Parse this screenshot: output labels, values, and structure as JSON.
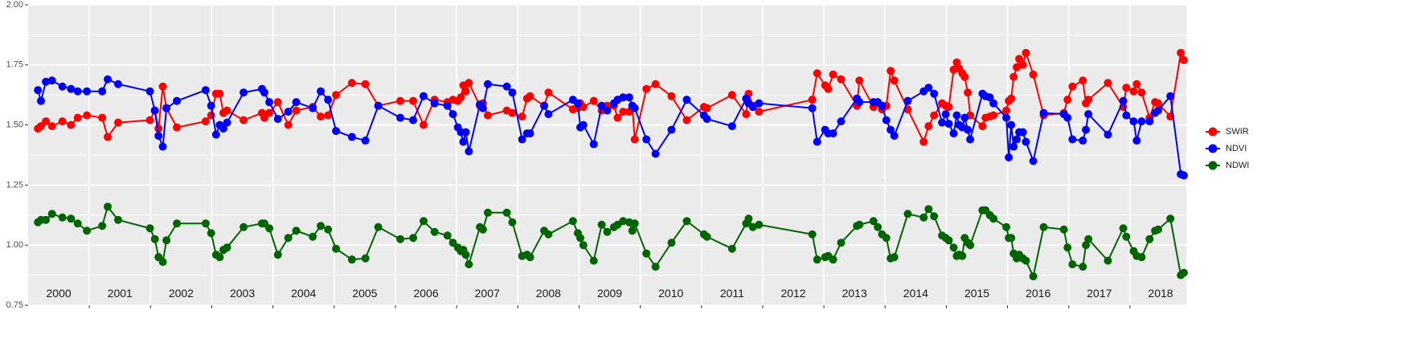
{
  "chart_data": {
    "type": "line",
    "x": [
      2000.16,
      2000.21,
      2000.29,
      2000.39,
      2000.56,
      2000.7,
      2000.81,
      2000.96,
      2001.21,
      2001.3,
      2001.47,
      2001.99,
      2002.07,
      2002.13,
      2002.2,
      2002.26,
      2002.43,
      2002.9,
      2002.99,
      2003.07,
      2003.13,
      2003.19,
      2003.25,
      2003.52,
      2003.82,
      2003.86,
      2003.94,
      2004.08,
      2004.25,
      2004.38,
      2004.65,
      2004.78,
      2004.9,
      2005.03,
      2005.29,
      2005.51,
      2005.72,
      2006.08,
      2006.29,
      2006.46,
      2006.64,
      2006.85,
      2006.94,
      2007.02,
      2007.07,
      2007.11,
      2007.15,
      2007.2,
      2007.38,
      2007.43,
      2007.51,
      2007.82,
      2007.91,
      2008.07,
      2008.15,
      2008.2,
      2008.43,
      2008.5,
      2008.9,
      2008.98,
      2009.02,
      2009.07,
      2009.24,
      2009.37,
      2009.46,
      2009.57,
      2009.63,
      2009.72,
      2009.82,
      2009.87,
      2009.91,
      2010.1,
      2010.25,
      2010.51,
      2010.76,
      2011.04,
      2011.09,
      2011.5,
      2011.73,
      2011.77,
      2011.84,
      2011.94,
      2012.81,
      2012.89,
      2013.02,
      2013.07,
      2013.15,
      2013.28,
      2013.54,
      2013.58,
      2013.81,
      2013.88,
      2013.95,
      2014.02,
      2014.09,
      2014.15,
      2014.37,
      2014.63,
      2014.71,
      2014.8,
      2014.93,
      2014.99,
      2015.04,
      2015.12,
      2015.17,
      2015.21,
      2015.26,
      2015.3,
      2015.35,
      2015.39,
      2015.59,
      2015.64,
      2015.71,
      2015.77,
      2015.98,
      2016.02,
      2016.06,
      2016.1,
      2016.15,
      2016.19,
      2016.25,
      2016.3,
      2016.42,
      2016.59,
      2016.92,
      2016.98,
      2017.06,
      2017.23,
      2017.28,
      2017.32,
      2017.64,
      2017.89,
      2017.94,
      2018.06,
      2018.11,
      2018.19,
      2018.32,
      2018.41,
      2018.46,
      2018.66,
      2018.83,
      2018.88
    ],
    "series": [
      {
        "name": "SWIR",
        "color": "#ff0000",
        "values": [
          1.485,
          1.495,
          1.515,
          1.495,
          1.515,
          1.5,
          1.53,
          1.54,
          1.53,
          1.45,
          1.51,
          1.52,
          1.56,
          1.485,
          1.66,
          1.57,
          1.49,
          1.515,
          1.54,
          1.63,
          1.63,
          1.55,
          1.56,
          1.52,
          1.55,
          1.53,
          1.55,
          1.595,
          1.5,
          1.56,
          1.575,
          1.535,
          1.54,
          1.625,
          1.675,
          1.67,
          1.58,
          1.6,
          1.6,
          1.5,
          1.605,
          1.595,
          1.605,
          1.6,
          1.615,
          1.665,
          1.64,
          1.675,
          1.58,
          1.59,
          1.54,
          1.56,
          1.55,
          1.535,
          1.61,
          1.62,
          1.58,
          1.635,
          1.565,
          1.57,
          1.59,
          1.575,
          1.6,
          1.56,
          1.58,
          1.58,
          1.53,
          1.555,
          1.555,
          1.58,
          1.44,
          1.65,
          1.67,
          1.62,
          1.52,
          1.575,
          1.57,
          1.625,
          1.545,
          1.63,
          1.58,
          1.555,
          1.605,
          1.715,
          1.665,
          1.65,
          1.71,
          1.69,
          1.58,
          1.685,
          1.575,
          1.59,
          1.565,
          1.58,
          1.725,
          1.685,
          1.565,
          1.43,
          1.495,
          1.54,
          1.59,
          1.58,
          1.575,
          1.73,
          1.76,
          1.735,
          1.715,
          1.7,
          1.635,
          1.54,
          1.495,
          1.53,
          1.535,
          1.54,
          1.56,
          1.6,
          1.61,
          1.7,
          1.74,
          1.775,
          1.75,
          1.8,
          1.71,
          1.54,
          1.55,
          1.605,
          1.66,
          1.685,
          1.59,
          1.605,
          1.675,
          1.575,
          1.655,
          1.64,
          1.67,
          1.635,
          1.53,
          1.595,
          1.59,
          1.535,
          1.8,
          1.77
        ]
      },
      {
        "name": "NDVI",
        "color": "#0000ff",
        "values": [
          1.645,
          1.6,
          1.68,
          1.685,
          1.66,
          1.65,
          1.64,
          1.64,
          1.64,
          1.69,
          1.67,
          1.64,
          1.56,
          1.455,
          1.41,
          1.57,
          1.6,
          1.645,
          1.58,
          1.46,
          1.5,
          1.485,
          1.51,
          1.635,
          1.65,
          1.635,
          1.595,
          1.525,
          1.555,
          1.595,
          1.57,
          1.64,
          1.605,
          1.475,
          1.45,
          1.435,
          1.58,
          1.53,
          1.52,
          1.62,
          1.59,
          1.58,
          1.545,
          1.49,
          1.47,
          1.43,
          1.47,
          1.39,
          1.585,
          1.57,
          1.67,
          1.66,
          1.635,
          1.44,
          1.465,
          1.465,
          1.58,
          1.545,
          1.605,
          1.59,
          1.49,
          1.5,
          1.42,
          1.58,
          1.56,
          1.59,
          1.605,
          1.615,
          1.615,
          1.58,
          1.57,
          1.44,
          1.38,
          1.48,
          1.605,
          1.54,
          1.525,
          1.495,
          1.61,
          1.59,
          1.575,
          1.59,
          1.57,
          1.43,
          1.48,
          1.465,
          1.465,
          1.515,
          1.61,
          1.595,
          1.595,
          1.595,
          1.58,
          1.52,
          1.48,
          1.455,
          1.6,
          1.64,
          1.655,
          1.63,
          1.51,
          1.545,
          1.505,
          1.465,
          1.54,
          1.5,
          1.49,
          1.53,
          1.48,
          1.44,
          1.63,
          1.62,
          1.615,
          1.59,
          1.53,
          1.365,
          1.5,
          1.41,
          1.44,
          1.47,
          1.47,
          1.43,
          1.35,
          1.55,
          1.545,
          1.53,
          1.44,
          1.435,
          1.48,
          1.545,
          1.46,
          1.6,
          1.54,
          1.515,
          1.435,
          1.515,
          1.515,
          1.55,
          1.56,
          1.62,
          1.295,
          1.29
        ]
      },
      {
        "name": "NDWI",
        "color": "#006400",
        "values": [
          1.095,
          1.105,
          1.105,
          1.13,
          1.115,
          1.11,
          1.09,
          1.06,
          1.08,
          1.16,
          1.105,
          1.07,
          1.025,
          0.95,
          0.93,
          1.02,
          1.09,
          1.09,
          1.05,
          0.96,
          0.95,
          0.98,
          0.99,
          1.075,
          1.09,
          1.09,
          1.07,
          0.96,
          1.03,
          1.06,
          1.035,
          1.08,
          1.065,
          0.985,
          0.94,
          0.945,
          1.075,
          1.025,
          1.03,
          1.1,
          1.055,
          1.04,
          1.01,
          0.99,
          0.975,
          0.98,
          0.96,
          0.92,
          1.075,
          1.065,
          1.135,
          1.135,
          1.095,
          0.955,
          0.96,
          0.95,
          1.06,
          1.045,
          1.1,
          1.05,
          1.03,
          1.0,
          0.935,
          1.085,
          1.055,
          1.075,
          1.085,
          1.1,
          1.095,
          1.06,
          1.09,
          0.965,
          0.91,
          1.01,
          1.1,
          1.045,
          1.035,
          0.985,
          1.09,
          1.11,
          1.075,
          1.085,
          1.045,
          0.94,
          0.95,
          0.955,
          0.94,
          1.01,
          1.08,
          1.085,
          1.1,
          1.075,
          1.045,
          1.03,
          0.945,
          0.95,
          1.13,
          1.115,
          1.15,
          1.12,
          1.04,
          1.03,
          1.02,
          0.99,
          0.955,
          0.96,
          0.955,
          1.03,
          1.01,
          1.0,
          1.145,
          1.145,
          1.125,
          1.11,
          1.075,
          1.03,
          1.03,
          0.965,
          0.945,
          0.96,
          0.945,
          0.935,
          0.87,
          1.075,
          1.065,
          0.99,
          0.92,
          0.91,
          1.0,
          1.025,
          0.935,
          1.07,
          1.035,
          0.975,
          0.955,
          0.95,
          1.025,
          1.06,
          1.065,
          1.11,
          0.875,
          0.885
        ]
      }
    ],
    "xlim": [
      2000,
      2018.92
    ],
    "xticks": [
      2001,
      2002,
      2003,
      2004,
      2005,
      2006,
      2007,
      2008,
      2009,
      2010,
      2011,
      2012,
      2013,
      2014,
      2015,
      2016,
      2017,
      2018
    ],
    "ylim": [
      0.75,
      2.0
    ],
    "yticks": [
      0.75,
      {
        "value": 1,
        "label": "1.00"
      },
      1.25,
      {
        "value": 1.5,
        "label": "1.50"
      },
      1.75,
      {
        "value": 2,
        "label": "2.00"
      }
    ],
    "grid": true,
    "legend": "right",
    "annotations": [
      {
        "text": "2000",
        "x": 2000.5,
        "y": 0.795
      },
      {
        "text": "2001",
        "x": 2001.5,
        "y": 0.795
      },
      {
        "text": "2002",
        "x": 2002.5,
        "y": 0.795
      },
      {
        "text": "2003",
        "x": 2003.5,
        "y": 0.795
      },
      {
        "text": "2004",
        "x": 2004.5,
        "y": 0.795
      },
      {
        "text": "2005",
        "x": 2005.5,
        "y": 0.795
      },
      {
        "text": "2006",
        "x": 2006.5,
        "y": 0.795
      },
      {
        "text": "2007",
        "x": 2007.5,
        "y": 0.795
      },
      {
        "text": "2008",
        "x": 2008.5,
        "y": 0.795
      },
      {
        "text": "2009",
        "x": 2009.5,
        "y": 0.795
      },
      {
        "text": "2010",
        "x": 2010.5,
        "y": 0.795
      },
      {
        "text": "2011",
        "x": 2011.5,
        "y": 0.795
      },
      {
        "text": "2012",
        "x": 2012.5,
        "y": 0.795
      },
      {
        "text": "2013",
        "x": 2013.5,
        "y": 0.795
      },
      {
        "text": "2014",
        "x": 2014.5,
        "y": 0.795
      },
      {
        "text": "2015",
        "x": 2015.5,
        "y": 0.795
      },
      {
        "text": "2016",
        "x": 2016.5,
        "y": 0.795
      },
      {
        "text": "2017",
        "x": 2017.5,
        "y": 0.795
      },
      {
        "text": "2018",
        "x": 2018.5,
        "y": 0.795
      }
    ]
  }
}
